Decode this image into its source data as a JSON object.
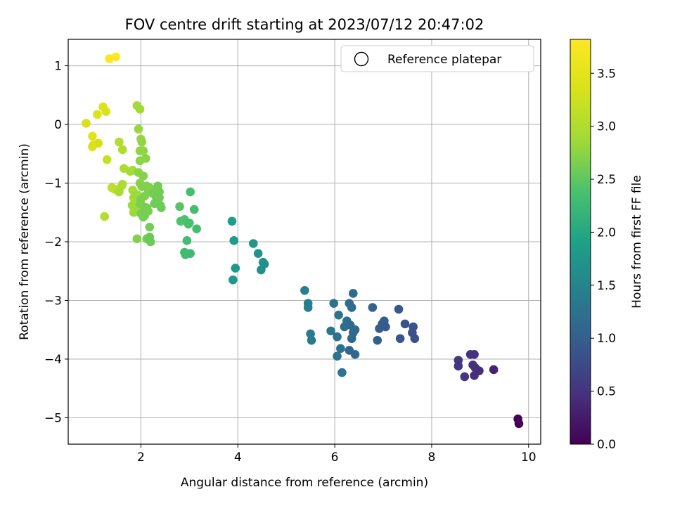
{
  "chart_data": {
    "type": "scatter",
    "title": "FOV centre drift starting at 2023/07/12 20:47:02",
    "xlabel": "Angular distance from reference (arcmin)",
    "ylabel": "Rotation from reference (arcmin)",
    "xlim": [
      0.5,
      10.25
    ],
    "ylim": [
      -5.45,
      1.45
    ],
    "xticks": [
      2,
      4,
      6,
      8,
      10
    ],
    "yticks": [
      1,
      0,
      -1,
      -2,
      -3,
      -4,
      -5
    ],
    "grid": true,
    "legend": {
      "placement": "top-right",
      "entries": [
        "Reference platepar"
      ]
    },
    "colorbar": {
      "label": "Hours from first FF file",
      "range": [
        0,
        3.82
      ],
      "ticks": [
        "0.0",
        "0.5",
        "1.0",
        "1.5",
        "2.0",
        "2.5",
        "3.0",
        "3.5"
      ],
      "colormap": "viridis"
    },
    "points": [
      [
        1.35,
        1.12,
        3.8
      ],
      [
        1.48,
        1.15,
        3.82
      ],
      [
        1.1,
        0.17,
        3.45
      ],
      [
        1.22,
        0.3,
        3.4
      ],
      [
        1.28,
        0.22,
        3.38
      ],
      [
        0.87,
        0.02,
        3.35
      ],
      [
        1.0,
        -0.2,
        3.47
      ],
      [
        1.02,
        -0.35,
        3.4
      ],
      [
        1.0,
        -0.38,
        3.38
      ],
      [
        1.12,
        -0.32,
        3.3
      ],
      [
        1.3,
        -0.6,
        3.2
      ],
      [
        1.4,
        -1.08,
        3.15
      ],
      [
        1.45,
        -1.1,
        3.1
      ],
      [
        1.5,
        -1.12,
        3.1
      ],
      [
        1.25,
        -1.57,
        3.05
      ],
      [
        1.55,
        -0.3,
        3.02
      ],
      [
        1.62,
        -0.43,
        3.0
      ],
      [
        1.65,
        -0.75,
        2.98
      ],
      [
        1.62,
        -1.02,
        2.96
      ],
      [
        1.6,
        -1.05,
        2.96
      ],
      [
        1.55,
        -1.15,
        2.95
      ],
      [
        1.78,
        -0.8,
        2.92
      ],
      [
        1.83,
        -0.78,
        2.9
      ],
      [
        1.83,
        -1.12,
        2.9
      ],
      [
        1.85,
        -1.25,
        2.88
      ],
      [
        1.82,
        -1.38,
        2.86
      ],
      [
        1.85,
        -1.5,
        2.85
      ],
      [
        1.88,
        -1.45,
        2.84
      ],
      [
        1.92,
        -1.2,
        2.84
      ],
      [
        1.92,
        0.32,
        2.9
      ],
      [
        1.98,
        0.26,
        2.88
      ],
      [
        1.95,
        -0.08,
        2.82
      ],
      [
        2.0,
        -0.25,
        2.8
      ],
      [
        2.02,
        -0.3,
        2.78
      ],
      [
        1.98,
        -0.45,
        2.78
      ],
      [
        2.05,
        -0.45,
        2.77
      ],
      [
        2.1,
        -0.58,
        2.75
      ],
      [
        1.98,
        -0.62,
        2.75
      ],
      [
        1.95,
        -0.82,
        2.74
      ],
      [
        2.05,
        -0.88,
        2.72
      ],
      [
        1.98,
        -1.0,
        2.72
      ],
      [
        2.02,
        -1.06,
        2.7
      ],
      [
        2.12,
        -1.05,
        2.7
      ],
      [
        2.18,
        -1.08,
        2.7
      ],
      [
        2.15,
        -1.15,
        2.68
      ],
      [
        2.08,
        -1.22,
        2.68
      ],
      [
        2.0,
        -1.28,
        2.67
      ],
      [
        1.98,
        -1.35,
        2.66
      ],
      [
        2.05,
        -1.4,
        2.66
      ],
      [
        2.12,
        -1.42,
        2.65
      ],
      [
        2.15,
        -1.48,
        2.65
      ],
      [
        2.0,
        -1.52,
        2.64
      ],
      [
        2.05,
        -1.58,
        2.64
      ],
      [
        2.08,
        -1.55,
        2.63
      ],
      [
        2.18,
        -1.75,
        2.62
      ],
      [
        2.25,
        -1.18,
        2.62
      ],
      [
        2.3,
        -1.15,
        2.62
      ],
      [
        2.35,
        -1.05,
        2.61
      ],
      [
        2.38,
        -1.15,
        2.61
      ],
      [
        2.32,
        -1.25,
        2.6
      ],
      [
        2.28,
        -1.35,
        2.6
      ],
      [
        2.38,
        -1.25,
        2.59
      ],
      [
        2.4,
        -1.38,
        2.58
      ],
      [
        2.42,
        -1.42,
        2.58
      ],
      [
        2.12,
        -1.95,
        2.6
      ],
      [
        2.2,
        -2.0,
        2.58
      ],
      [
        2.18,
        -1.92,
        2.56
      ],
      [
        1.92,
        -1.95,
        2.7
      ],
      [
        2.8,
        -1.4,
        2.45
      ],
      [
        2.82,
        -1.65,
        2.42
      ],
      [
        2.9,
        -1.62,
        2.4
      ],
      [
        2.98,
        -1.7,
        2.38
      ],
      [
        3.0,
        -1.68,
        2.37
      ],
      [
        3.02,
        -1.15,
        2.35
      ],
      [
        3.1,
        -1.45,
        2.34
      ],
      [
        3.15,
        -1.78,
        2.33
      ],
      [
        2.95,
        -1.98,
        2.32
      ],
      [
        2.9,
        -2.18,
        2.3
      ],
      [
        2.92,
        -2.22,
        2.3
      ],
      [
        3.02,
        -2.2,
        2.29
      ],
      [
        3.88,
        -1.65,
        1.85
      ],
      [
        3.92,
        -1.98,
        1.83
      ],
      [
        3.95,
        -2.45,
        1.8
      ],
      [
        3.9,
        -2.65,
        1.8
      ],
      [
        4.32,
        -2.03,
        1.75
      ],
      [
        4.42,
        -2.2,
        1.72
      ],
      [
        4.52,
        -2.35,
        1.7
      ],
      [
        4.55,
        -2.38,
        1.68
      ],
      [
        4.48,
        -2.48,
        1.66
      ],
      [
        5.38,
        -2.83,
        1.45
      ],
      [
        5.45,
        -3.05,
        1.42
      ],
      [
        5.45,
        -3.12,
        1.4
      ],
      [
        5.5,
        -3.57,
        1.38
      ],
      [
        5.52,
        -3.68,
        1.35
      ],
      [
        5.92,
        -3.52,
        1.32
      ],
      [
        5.98,
        -3.05,
        1.3
      ],
      [
        6.08,
        -3.25,
        1.28
      ],
      [
        6.05,
        -3.62,
        1.27
      ],
      [
        6.12,
        -3.82,
        1.26
      ],
      [
        6.05,
        -3.95,
        1.25
      ],
      [
        6.15,
        -4.23,
        1.25
      ],
      [
        6.2,
        -3.45,
        1.22
      ],
      [
        6.25,
        -3.35,
        1.2
      ],
      [
        6.3,
        -3.05,
        1.18
      ],
      [
        6.35,
        -3.12,
        1.17
      ],
      [
        6.38,
        -2.88,
        1.16
      ],
      [
        6.32,
        -3.42,
        1.15
      ],
      [
        6.38,
        -3.55,
        1.14
      ],
      [
        6.42,
        -3.5,
        1.12
      ],
      [
        6.35,
        -3.65,
        1.12
      ],
      [
        6.3,
        -3.85,
        1.1
      ],
      [
        6.42,
        -3.92,
        1.1
      ],
      [
        6.78,
        -3.12,
        1.02
      ],
      [
        6.88,
        -3.68,
        1.0
      ],
      [
        6.92,
        -3.48,
        0.98
      ],
      [
        6.98,
        -3.4,
        0.96
      ],
      [
        7.02,
        -3.35,
        0.95
      ],
      [
        7.05,
        -3.45,
        0.94
      ],
      [
        7.32,
        -3.15,
        0.9
      ],
      [
        7.35,
        -3.65,
        0.88
      ],
      [
        7.45,
        -3.4,
        0.86
      ],
      [
        7.62,
        -3.45,
        0.85
      ],
      [
        7.6,
        -3.55,
        0.84
      ],
      [
        7.65,
        -3.65,
        0.83
      ],
      [
        8.55,
        -4.02,
        0.55
      ],
      [
        8.55,
        -4.12,
        0.54
      ],
      [
        8.68,
        -4.3,
        0.52
      ],
      [
        8.8,
        -3.92,
        0.5
      ],
      [
        8.88,
        -3.92,
        0.48
      ],
      [
        8.85,
        -4.1,
        0.47
      ],
      [
        8.9,
        -4.15,
        0.46
      ],
      [
        8.88,
        -4.28,
        0.45
      ],
      [
        8.98,
        -4.2,
        0.44
      ],
      [
        9.28,
        -4.18,
        0.35
      ],
      [
        9.78,
        -5.02,
        0.02
      ],
      [
        9.8,
        -5.1,
        0.0
      ]
    ]
  }
}
